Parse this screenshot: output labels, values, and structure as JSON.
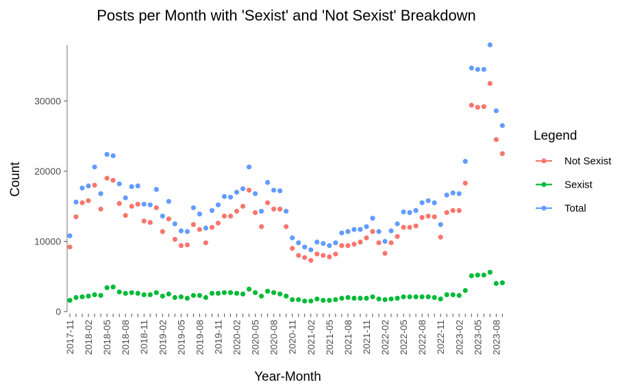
{
  "chart_data": {
    "type": "scatter",
    "title": "Posts per Month with 'Sexist' and 'Not Sexist' Breakdown",
    "xlabel": "Year-Month",
    "ylabel": "Count",
    "ylim": [
      0,
      38000
    ],
    "y_ticks": [
      0,
      10000,
      20000,
      30000
    ],
    "x_tick_labels": [
      "2017-11",
      "2018-02",
      "2018-05",
      "2018-08",
      "2018-11",
      "2019-02",
      "2019-05",
      "2019-08",
      "2019-11",
      "2020-02",
      "2020-05",
      "2020-08",
      "2020-11",
      "2021-02",
      "2021-05",
      "2021-08",
      "2021-11",
      "2022-02",
      "2022-05",
      "2022-08",
      "2022-11",
      "2023-02",
      "2023-05",
      "2023-08"
    ],
    "x": [
      "2017-11",
      "2017-12",
      "2018-01",
      "2018-02",
      "2018-03",
      "2018-04",
      "2018-05",
      "2018-06",
      "2018-07",
      "2018-08",
      "2018-09",
      "2018-10",
      "2018-11",
      "2018-12",
      "2019-01",
      "2019-02",
      "2019-03",
      "2019-04",
      "2019-05",
      "2019-06",
      "2019-07",
      "2019-08",
      "2019-09",
      "2019-10",
      "2019-11",
      "2019-12",
      "2020-01",
      "2020-02",
      "2020-03",
      "2020-04",
      "2020-05",
      "2020-06",
      "2020-07",
      "2020-08",
      "2020-09",
      "2020-10",
      "2020-11",
      "2020-12",
      "2021-01",
      "2021-02",
      "2021-03",
      "2021-04",
      "2021-05",
      "2021-06",
      "2021-07",
      "2021-08",
      "2021-09",
      "2021-10",
      "2021-11",
      "2021-12",
      "2022-01",
      "2022-02",
      "2022-03",
      "2022-04",
      "2022-05",
      "2022-06",
      "2022-07",
      "2022-08",
      "2022-09",
      "2022-10",
      "2022-11",
      "2022-12",
      "2023-01",
      "2023-02",
      "2023-03",
      "2023-04",
      "2023-05",
      "2023-06",
      "2023-07",
      "2023-08",
      "2023-09"
    ],
    "grid": false,
    "legend_title": "Legend",
    "legend_position": "right",
    "series": [
      {
        "name": "Not Sexist",
        "color": "#F8766D",
        "values": [
          9200,
          13500,
          15500,
          15800,
          18000,
          14600,
          19000,
          18700,
          15400,
          13700,
          15000,
          15300,
          12900,
          12700,
          14800,
          11400,
          13200,
          10300,
          9400,
          9500,
          12400,
          11700,
          9800,
          12000,
          12600,
          13600,
          13600,
          14300,
          15000,
          17300,
          14100,
          12100,
          15500,
          14600,
          14600,
          12100,
          9000,
          8000,
          7700,
          7300,
          8200,
          8000,
          7800,
          8200,
          9400,
          9400,
          9600,
          9900,
          10500,
          11400,
          9800,
          8300,
          9800,
          10700,
          12000,
          12000,
          12200,
          13400,
          13600,
          13500,
          10600,
          14100,
          14400,
          14400,
          18300,
          29400,
          29100,
          29200,
          32500,
          24500,
          22500
        ]
      },
      {
        "name": "Sexist",
        "color": "#00BA38",
        "values": [
          1600,
          2000,
          2100,
          2200,
          2400,
          2300,
          3400,
          3500,
          2800,
          2600,
          2700,
          2600,
          2400,
          2400,
          2700,
          2200,
          2500,
          2000,
          2100,
          1900,
          2300,
          2300,
          2000,
          2600,
          2600,
          2700,
          2700,
          2600,
          2500,
          3200,
          2700,
          2200,
          2900,
          2700,
          2500,
          2200,
          1700,
          1700,
          1500,
          1500,
          1800,
          1600,
          1600,
          1700,
          1900,
          2000,
          1900,
          1900,
          1900,
          2100,
          1800,
          1700,
          1800,
          1900,
          2100,
          2100,
          2100,
          2100,
          2100,
          2000,
          1800,
          2400,
          2400,
          2300,
          3000,
          5100,
          5200,
          5200,
          5600,
          4000,
          4100
        ]
      },
      {
        "name": "Total",
        "color": "#619CFF",
        "values": [
          10800,
          15600,
          17600,
          17900,
          20600,
          16800,
          22400,
          22200,
          18200,
          16200,
          17800,
          17900,
          15300,
          15200,
          17400,
          13600,
          15700,
          12500,
          11500,
          11400,
          14800,
          13900,
          11900,
          14400,
          15200,
          16400,
          16300,
          17000,
          17500,
          20600,
          16800,
          14300,
          18400,
          17300,
          17200,
          14300,
          10500,
          9800,
          9200,
          8800,
          9900,
          9700,
          9400,
          9800,
          11200,
          11400,
          11700,
          11700,
          12100,
          13300,
          11400,
          10000,
          11500,
          12500,
          14200,
          14100,
          14400,
          15500,
          15800,
          15500,
          12400,
          16600,
          16900,
          16800,
          21400,
          34700,
          34500,
          34500,
          38000,
          28600,
          26500
        ]
      }
    ]
  }
}
